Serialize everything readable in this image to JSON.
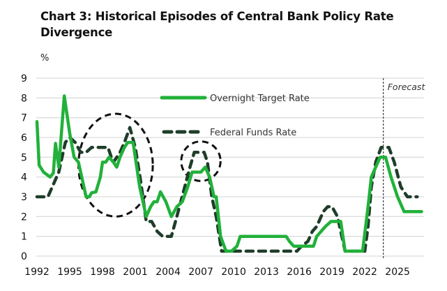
{
  "title": "Chart 3: Historical Episodes of Central Bank Policy Rate Divergence",
  "unit_label": "%",
  "colors": {
    "overnight": "#21b13a",
    "fedfunds": "#1f3d2a",
    "grid": "#dcdcdc",
    "ellipse": "#111111"
  },
  "chart_data": {
    "type": "line",
    "title": "Chart 3: Historical Episodes of Central Bank Policy Rate Divergence",
    "xlabel": "",
    "ylabel": "%",
    "xlim": [
      1992,
      2027.3
    ],
    "ylim": [
      0,
      9
    ],
    "grid": true,
    "legend_position": "top-center",
    "x_ticks": [
      "1992",
      "1995",
      "1998",
      "2001",
      "2004",
      "2007",
      "2010",
      "2013",
      "2016",
      "2019",
      "2022",
      "2025"
    ],
    "y_ticks": [
      "0",
      "1",
      "2",
      "3",
      "4",
      "5",
      "6",
      "7",
      "8",
      "9"
    ],
    "annotations": [
      {
        "type": "vertical-line",
        "x": 2023.7,
        "label": "Forecast"
      },
      {
        "type": "ellipse",
        "x_range": [
          1995.8,
          2002.6
        ],
        "y_range": [
          2.0,
          7.2
        ]
      },
      {
        "type": "ellipse",
        "x_range": [
          2005.2,
          2008.8
        ],
        "y_range": [
          3.8,
          5.8
        ]
      }
    ],
    "series": [
      {
        "name": "Overnight Target Rate",
        "style": "solid",
        "points": [
          [
            1992.0,
            6.8
          ],
          [
            1992.2,
            4.6
          ],
          [
            1992.6,
            4.25
          ],
          [
            1993.2,
            4.0
          ],
          [
            1993.5,
            4.2
          ],
          [
            1993.7,
            5.7
          ],
          [
            1994.0,
            4.5
          ],
          [
            1994.5,
            8.1
          ],
          [
            1995.0,
            6.2
          ],
          [
            1995.4,
            5.0
          ],
          [
            1995.8,
            4.75
          ],
          [
            1996.5,
            3.0
          ],
          [
            1996.8,
            3.0
          ],
          [
            1997.0,
            3.2
          ],
          [
            1997.4,
            3.25
          ],
          [
            1997.8,
            4.0
          ],
          [
            1998.0,
            4.75
          ],
          [
            1998.3,
            4.75
          ],
          [
            1998.6,
            5.0
          ],
          [
            1999.0,
            4.75
          ],
          [
            1999.3,
            4.5
          ],
          [
            1999.6,
            5.0
          ],
          [
            2000.0,
            5.5
          ],
          [
            2000.3,
            5.75
          ],
          [
            2000.8,
            5.75
          ],
          [
            2001.0,
            5.0
          ],
          [
            2001.4,
            3.5
          ],
          [
            2002.0,
            2.0
          ],
          [
            2002.4,
            2.5
          ],
          [
            2002.7,
            2.75
          ],
          [
            2003.0,
            2.75
          ],
          [
            2003.3,
            3.25
          ],
          [
            2003.8,
            2.75
          ],
          [
            2004.3,
            2.0
          ],
          [
            2004.8,
            2.5
          ],
          [
            2005.3,
            2.75
          ],
          [
            2005.8,
            3.5
          ],
          [
            2006.2,
            4.25
          ],
          [
            2006.6,
            4.25
          ],
          [
            2007.0,
            4.25
          ],
          [
            2007.4,
            4.5
          ],
          [
            2007.8,
            4.0
          ],
          [
            2008.2,
            3.0
          ],
          [
            2008.4,
            3.0
          ],
          [
            2008.8,
            1.0
          ],
          [
            2009.3,
            0.25
          ],
          [
            2009.8,
            0.25
          ],
          [
            2010.3,
            0.5
          ],
          [
            2010.6,
            1.0
          ],
          [
            2014.8,
            1.0
          ],
          [
            2015.1,
            0.75
          ],
          [
            2015.5,
            0.5
          ],
          [
            2017.3,
            0.5
          ],
          [
            2017.6,
            1.0
          ],
          [
            2018.0,
            1.25
          ],
          [
            2018.4,
            1.5
          ],
          [
            2018.9,
            1.75
          ],
          [
            2019.8,
            1.75
          ],
          [
            2020.2,
            0.25
          ],
          [
            2021.8,
            0.25
          ],
          [
            2022.3,
            2.5
          ],
          [
            2022.6,
            4.0
          ],
          [
            2023.0,
            4.5
          ],
          [
            2023.4,
            5.0
          ],
          [
            2023.9,
            5.0
          ],
          [
            2024.4,
            4.0
          ],
          [
            2025.0,
            3.0
          ],
          [
            2025.6,
            2.25
          ],
          [
            2027.2,
            2.25
          ]
        ]
      },
      {
        "name": "Federal Funds Rate",
        "style": "dashed",
        "points": [
          [
            1992.0,
            3.0
          ],
          [
            1993.0,
            3.0
          ],
          [
            1994.0,
            4.25
          ],
          [
            1994.6,
            5.75
          ],
          [
            1995.0,
            6.0
          ],
          [
            1995.5,
            5.75
          ],
          [
            1996.0,
            5.25
          ],
          [
            1996.5,
            5.25
          ],
          [
            1997.0,
            5.5
          ],
          [
            1998.5,
            5.5
          ],
          [
            1998.8,
            5.0
          ],
          [
            1999.0,
            4.75
          ],
          [
            1999.6,
            5.25
          ],
          [
            2000.0,
            5.75
          ],
          [
            2000.5,
            6.5
          ],
          [
            2001.0,
            5.5
          ],
          [
            2001.5,
            3.75
          ],
          [
            2002.0,
            1.75
          ],
          [
            2002.5,
            1.75
          ],
          [
            2003.0,
            1.25
          ],
          [
            2003.5,
            1.0
          ],
          [
            2004.3,
            1.0
          ],
          [
            2004.8,
            2.0
          ],
          [
            2005.4,
            3.25
          ],
          [
            2006.0,
            4.5
          ],
          [
            2006.4,
            5.25
          ],
          [
            2007.3,
            5.25
          ],
          [
            2007.6,
            4.75
          ],
          [
            2008.0,
            3.0
          ],
          [
            2008.4,
            2.0
          ],
          [
            2008.9,
            0.25
          ],
          [
            2015.8,
            0.25
          ],
          [
            2016.2,
            0.5
          ],
          [
            2016.8,
            0.75
          ],
          [
            2017.2,
            1.25
          ],
          [
            2017.6,
            1.5
          ],
          [
            2018.2,
            2.25
          ],
          [
            2018.6,
            2.5
          ],
          [
            2019.0,
            2.5
          ],
          [
            2019.5,
            2.0
          ],
          [
            2020.2,
            0.25
          ],
          [
            2022.0,
            0.25
          ],
          [
            2022.3,
            1.5
          ],
          [
            2022.6,
            3.5
          ],
          [
            2023.0,
            4.75
          ],
          [
            2023.5,
            5.5
          ],
          [
            2024.2,
            5.5
          ],
          [
            2024.7,
            4.75
          ],
          [
            2025.3,
            3.5
          ],
          [
            2025.9,
            3.0
          ],
          [
            2026.8,
            3.0
          ]
        ]
      }
    ]
  }
}
